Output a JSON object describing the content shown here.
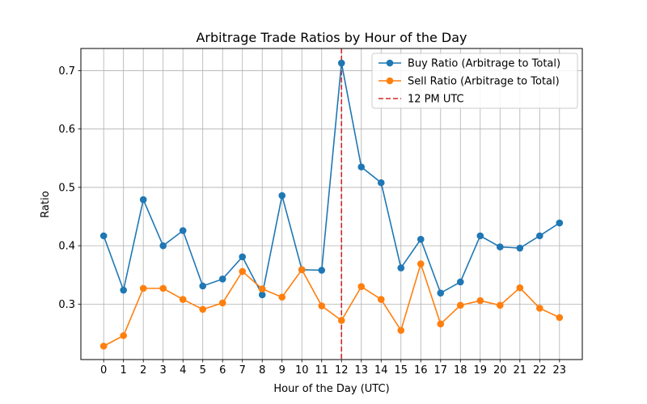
{
  "chart_data": {
    "type": "line",
    "title": "Arbitrage Trade Ratios by Hour of the Day",
    "xlabel": "Hour of the Day (UTC)",
    "ylabel": "Ratio",
    "x": [
      0,
      1,
      2,
      3,
      4,
      5,
      6,
      7,
      8,
      9,
      10,
      11,
      12,
      13,
      14,
      15,
      16,
      17,
      18,
      19,
      20,
      21,
      22,
      23
    ],
    "xlim": [
      -1.15,
      24.15
    ],
    "ylim": [
      0.205,
      0.738
    ],
    "yticks": [
      0.3,
      0.4,
      0.5,
      0.6,
      0.7
    ],
    "grid": true,
    "legend_position": "top-right",
    "series": [
      {
        "name": "Buy Ratio (Arbitrage to Total)",
        "color": "#1f77b4",
        "marker": "circle",
        "values": [
          0.417,
          0.324,
          0.479,
          0.4,
          0.426,
          0.331,
          0.343,
          0.381,
          0.316,
          0.486,
          0.359,
          0.358,
          0.713,
          0.535,
          0.508,
          0.362,
          0.411,
          0.319,
          0.338,
          0.417,
          0.398,
          0.396,
          0.417,
          0.439
        ]
      },
      {
        "name": "Sell Ratio (Arbitrage to Total)",
        "color": "#ff7f0e",
        "marker": "circle",
        "values": [
          0.228,
          0.246,
          0.327,
          0.327,
          0.308,
          0.291,
          0.302,
          0.356,
          0.326,
          0.312,
          0.359,
          0.297,
          0.272,
          0.33,
          0.308,
          0.255,
          0.369,
          0.266,
          0.298,
          0.306,
          0.298,
          0.328,
          0.293,
          0.277
        ]
      }
    ],
    "reference_lines": [
      {
        "name": "12 PM UTC",
        "x": 12,
        "color": "#d62728",
        "style": "dashed"
      }
    ]
  }
}
